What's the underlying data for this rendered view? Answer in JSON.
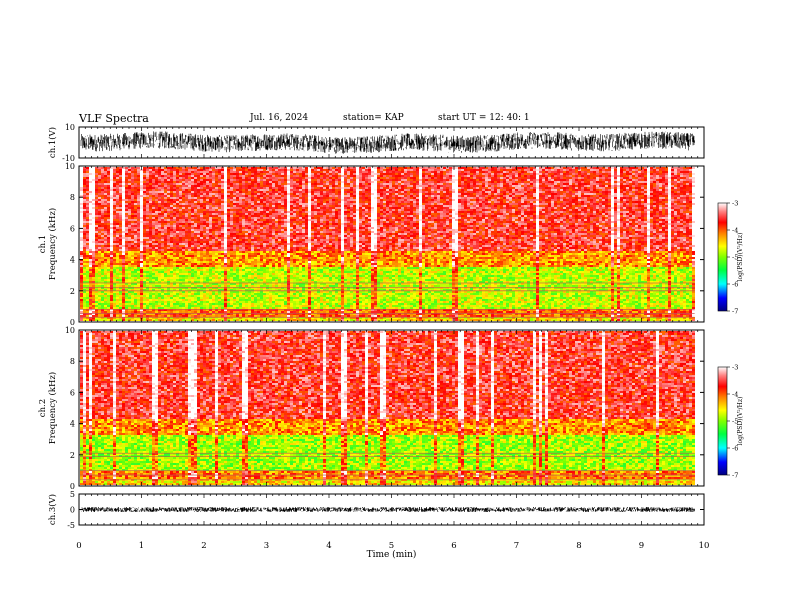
{
  "header": {
    "title": "VLF Spectra",
    "date": "Jul. 16, 2024",
    "station": "station= KAP",
    "start_ut": "start UT =  12: 40: 1"
  },
  "chart_data": [
    {
      "type": "line",
      "name": "ch1-waveform",
      "ylabel": "ch.1(V)",
      "ylim": [
        -10,
        10
      ],
      "yticks": [
        "10",
        "-10"
      ],
      "xlim": [
        0,
        10
      ],
      "series_color": "#000000",
      "amplitude_range": [
        -8,
        8
      ]
    },
    {
      "type": "heatmap",
      "name": "ch1-spectrogram",
      "ylabel": "ch.1\nFrequency (kHz)",
      "ylim": [
        0,
        10
      ],
      "yticks": [
        "0",
        "2",
        "4",
        "6",
        "8",
        "10"
      ],
      "xlim": [
        0,
        10
      ],
      "data_extent_min": 9.85,
      "colorbar": {
        "label": "log(PSD)(V²/Hz)",
        "range": [
          -7,
          -3
        ],
        "ticks": [
          "-3",
          "-4",
          "-5",
          "-6",
          "-7"
        ]
      },
      "bands": [
        {
          "from": 0,
          "to": 0.4,
          "level": -4.5
        },
        {
          "from": 0.4,
          "to": 0.9,
          "level": -4.0
        },
        {
          "from": 0.9,
          "to": 3.6,
          "level": -4.8
        },
        {
          "from": 3.6,
          "to": 4.6,
          "level": -4.2
        },
        {
          "from": 4.6,
          "to": 10,
          "level": -3.6
        }
      ],
      "lines_khz": [
        0.3,
        0.55,
        0.8,
        2.0,
        2.2,
        2.5
      ]
    },
    {
      "type": "heatmap",
      "name": "ch2-spectrogram",
      "ylabel": "ch.2\nFrequency (kHz)",
      "ylim": [
        0,
        10
      ],
      "yticks": [
        "0",
        "2",
        "4",
        "6",
        "8",
        "10"
      ],
      "xlim": [
        0,
        10
      ],
      "data_extent_min": 9.85,
      "colorbar": {
        "label": "log(PSD)(V²/Hz)",
        "range": [
          -7,
          -3
        ],
        "ticks": [
          "-3",
          "-4",
          "-5",
          "-6",
          "-7"
        ]
      },
      "bands": [
        {
          "from": 0,
          "to": 0.5,
          "level": -4.5
        },
        {
          "from": 0.5,
          "to": 1.0,
          "level": -4.1
        },
        {
          "from": 1.0,
          "to": 3.3,
          "level": -4.9
        },
        {
          "from": 3.3,
          "to": 4.4,
          "level": -4.2
        },
        {
          "from": 4.4,
          "to": 10,
          "level": -3.6
        }
      ],
      "lines_khz": [
        0.4,
        0.7,
        1.0,
        1.9,
        2.1
      ]
    },
    {
      "type": "line",
      "name": "ch3-waveform",
      "ylabel": "ch.3(V)",
      "ylim": [
        -5,
        5
      ],
      "yticks": [
        "5",
        "0",
        "-5"
      ],
      "xlim": [
        0,
        10
      ],
      "xlabel": "Time (min)",
      "xticks": [
        "0",
        "1",
        "2",
        "3",
        "4",
        "5",
        "6",
        "7",
        "8",
        "9",
        "10"
      ],
      "series_color": "#000000",
      "amplitude_range": [
        -0.8,
        0.8
      ]
    }
  ]
}
